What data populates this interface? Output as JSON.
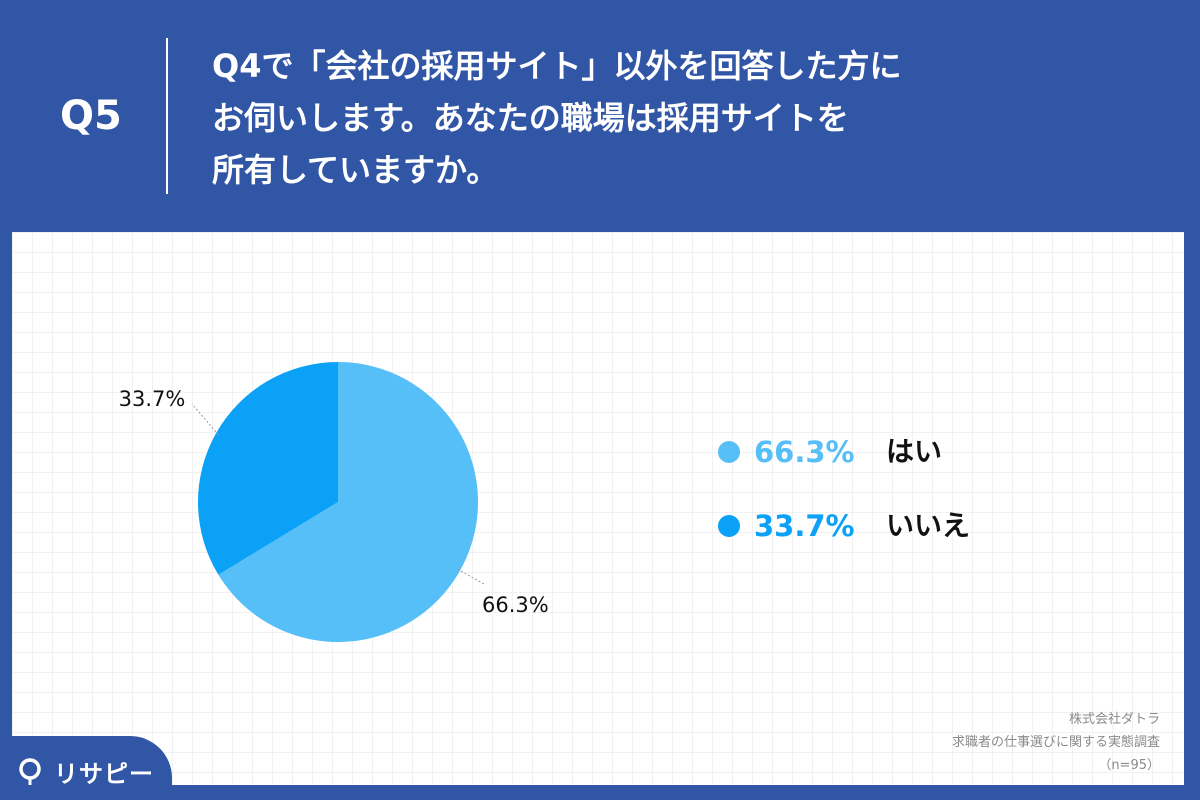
{
  "header": {
    "q_label": "Q5",
    "question_lines": [
      "Q4で「会社の採用サイト」以外を回答した方に",
      "お伺いします。あなたの職場は採用サイトを",
      "所有していますか。"
    ]
  },
  "chart_data": {
    "type": "pie",
    "categories": [
      "はい",
      "いいえ"
    ],
    "values": [
      66.3,
      33.7
    ],
    "value_labels": [
      "66.3%",
      "33.7%"
    ],
    "colors": [
      "#56bff8",
      "#0aa1f6"
    ],
    "start_angle": "12 o'clock, clockwise",
    "legend_position": "right",
    "legend": [
      {
        "pct": "66.3%",
        "label": "はい",
        "color": "#56bff8"
      },
      {
        "pct": "33.7%",
        "label": "いいえ",
        "color": "#0aa1f6"
      }
    ]
  },
  "source": {
    "lines": [
      "株式会社ダトラ",
      "求職者の仕事選びに関する実態調査",
      "（n=95）"
    ]
  },
  "brand": {
    "name": "リサピー"
  },
  "colors": {
    "background": "#3256a6",
    "panel": "#ffffff",
    "text": "#111111",
    "source_text": "#8a8a8a"
  }
}
